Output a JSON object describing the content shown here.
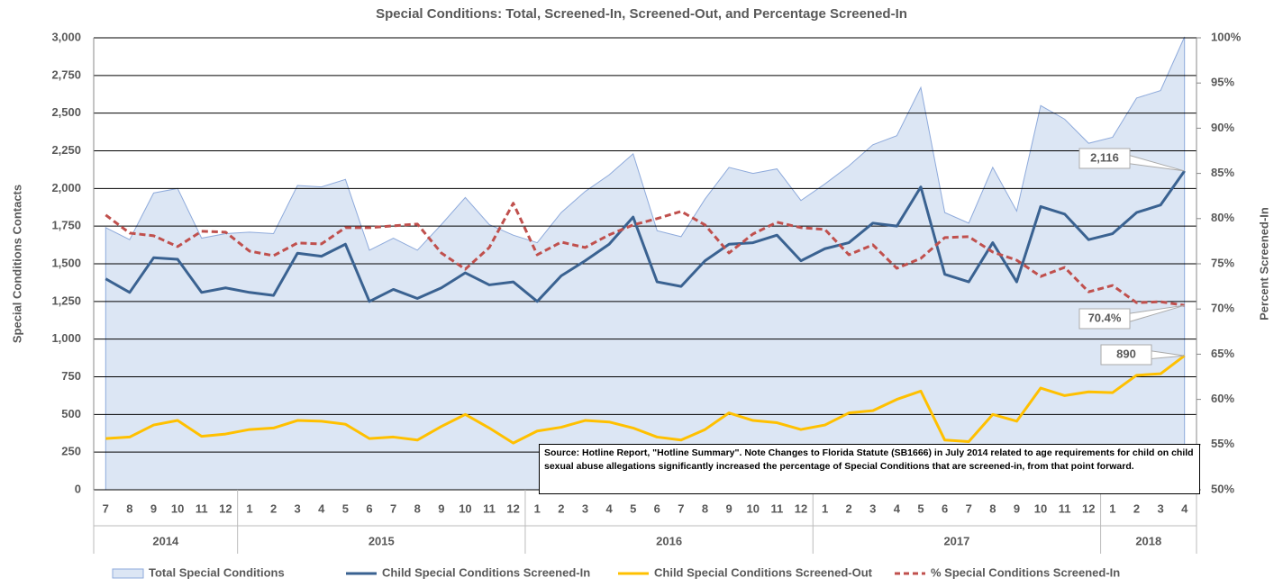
{
  "chart_data": {
    "type": "combo",
    "title": "Special Conditions: Total, Screened-In, Screened-Out, and Percentage Screened-In",
    "y_label": "Special Conditions Contacts",
    "y2_label": "Percent Screened-In",
    "year_groups": [
      {
        "label": "2014",
        "categories": [
          "7",
          "8",
          "9",
          "10",
          "11",
          "12"
        ]
      },
      {
        "label": "2015",
        "categories": [
          "1",
          "2",
          "3",
          "4",
          "5",
          "6",
          "7",
          "8",
          "9",
          "10",
          "11",
          "12"
        ]
      },
      {
        "label": "2016",
        "categories": [
          "1",
          "2",
          "3",
          "4",
          "5",
          "6",
          "7",
          "8",
          "9",
          "10",
          "11",
          "12"
        ]
      },
      {
        "label": "2017",
        "categories": [
          "1",
          "2",
          "3",
          "4",
          "5",
          "6",
          "7",
          "8",
          "9",
          "10",
          "11",
          "12"
        ]
      },
      {
        "label": "2018",
        "categories": [
          "1",
          "2",
          "3",
          "4"
        ]
      }
    ],
    "ylim": [
      0,
      3000
    ],
    "yticks": [
      0,
      250,
      500,
      750,
      {
        "value": 1000,
        "label": "1,000"
      },
      {
        "value": 1250,
        "label": "1,250"
      },
      {
        "value": 1500,
        "label": "1,500"
      },
      {
        "value": 1750,
        "label": "1,750"
      },
      {
        "value": 2000,
        "label": "2,000"
      },
      {
        "value": 2250,
        "label": "2,250"
      },
      {
        "value": 2500,
        "label": "2,500"
      },
      {
        "value": 2750,
        "label": "2,750"
      },
      {
        "value": 3000,
        "label": "3,000"
      }
    ],
    "y2lim": [
      50,
      100
    ],
    "y2ticks": [
      {
        "value": 50,
        "label": "50%"
      },
      {
        "value": 55,
        "label": "55%"
      },
      {
        "value": 60,
        "label": "60%"
      },
      {
        "value": 65,
        "label": "65%"
      },
      {
        "value": 70,
        "label": "70%"
      },
      {
        "value": 75,
        "label": "75%"
      },
      {
        "value": 80,
        "label": "80%"
      },
      {
        "value": 85,
        "label": "85%"
      },
      {
        "value": 90,
        "label": "90%"
      },
      {
        "value": 95,
        "label": "95%"
      },
      {
        "value": 100,
        "label": "100%"
      }
    ],
    "grid": true,
    "series": [
      {
        "name": "Total Special Conditions",
        "kind": "area",
        "color": "#dce6f4",
        "values": [
          1740,
          1660,
          1970,
          2000,
          1670,
          1700,
          1710,
          1700,
          2020,
          2010,
          2060,
          1590,
          1670,
          1590,
          1760,
          1940,
          1760,
          1690,
          1640,
          1840,
          1980,
          2090,
          2230,
          1720,
          1680,
          1930,
          2140,
          2100,
          2130,
          1920,
          2030,
          2150,
          2290,
          2350,
          2670,
          1840,
          1770,
          2140,
          1850,
          2550,
          2460,
          2300,
          2340,
          2600,
          2650,
          3006
        ]
      },
      {
        "name": "Child Special Conditions Screened-In",
        "kind": "line",
        "color": "#3a6291",
        "values": [
          1400,
          1310,
          1540,
          1530,
          1310,
          1340,
          1310,
          1290,
          1570,
          1550,
          1630,
          1250,
          1330,
          1270,
          1340,
          1440,
          1360,
          1380,
          1250,
          1420,
          1520,
          1630,
          1810,
          1380,
          1350,
          1520,
          1630,
          1640,
          1690,
          1520,
          1600,
          1640,
          1770,
          1750,
          2010,
          1430,
          1380,
          1640,
          1380,
          1880,
          1830,
          1660,
          1700,
          1840,
          1890,
          2116
        ],
        "value_labels": [
          null,
          null,
          null,
          null,
          null,
          null,
          null,
          null,
          null,
          null,
          null,
          null,
          null,
          null,
          null,
          null,
          null,
          null,
          null,
          null,
          null,
          null,
          null,
          null,
          null,
          null,
          null,
          null,
          null,
          null,
          null,
          null,
          null,
          null,
          null,
          null,
          null,
          null,
          null,
          null,
          null,
          null,
          null,
          null,
          null,
          "2,116"
        ]
      },
      {
        "name": "Child Special Conditions Screened-Out",
        "kind": "line",
        "color": "#ffc000",
        "values": [
          340,
          350,
          430,
          460,
          355,
          370,
          400,
          410,
          460,
          455,
          435,
          340,
          350,
          330,
          420,
          500,
          410,
          310,
          390,
          415,
          460,
          450,
          410,
          350,
          330,
          400,
          510,
          460,
          445,
          400,
          430,
          510,
          525,
          600,
          655,
          330,
          320,
          500,
          455,
          675,
          625,
          650,
          645,
          760,
          770,
          890
        ],
        "value_labels": [
          null,
          null,
          null,
          null,
          null,
          null,
          null,
          null,
          null,
          null,
          null,
          null,
          null,
          null,
          null,
          null,
          null,
          null,
          null,
          null,
          null,
          null,
          null,
          null,
          null,
          null,
          null,
          null,
          null,
          null,
          null,
          null,
          null,
          null,
          null,
          null,
          null,
          null,
          null,
          null,
          null,
          null,
          null,
          null,
          null,
          "890"
        ]
      },
      {
        "name": "% Special Conditions Screened-In",
        "kind": "dashed",
        "axis": "y2",
        "color": "#c0504d",
        "values": [
          80.4,
          78.4,
          78.1,
          76.9,
          78.6,
          78.5,
          76.4,
          75.9,
          77.3,
          77.2,
          79.0,
          79.0,
          79.2,
          79.4,
          76.2,
          74.4,
          76.8,
          81.7,
          76.0,
          77.4,
          76.8,
          78.2,
          79.3,
          80.0,
          80.8,
          79.3,
          76.2,
          78.3,
          79.6,
          79.0,
          78.8,
          76.0,
          77.1,
          74.5,
          75.6,
          77.9,
          78.0,
          76.3,
          75.4,
          73.6,
          74.6,
          71.9,
          72.6,
          70.7,
          70.8,
          70.4
        ],
        "value_labels": [
          null,
          null,
          null,
          null,
          null,
          null,
          null,
          null,
          null,
          null,
          null,
          null,
          null,
          null,
          null,
          null,
          null,
          null,
          null,
          null,
          null,
          null,
          null,
          null,
          null,
          null,
          null,
          null,
          null,
          null,
          null,
          null,
          null,
          null,
          null,
          null,
          null,
          null,
          null,
          null,
          null,
          null,
          null,
          null,
          null,
          "70.4%"
        ]
      }
    ],
    "note": "Source: Hotline Report, \"Hotline Summary\".  Note Changes to Florida Statute (SB1666) in July 2014 related to age requirements for child on child sexual abuse allegations significantly increased the percentage of Special Conditions  that are screened-in, from that point  forward."
  }
}
